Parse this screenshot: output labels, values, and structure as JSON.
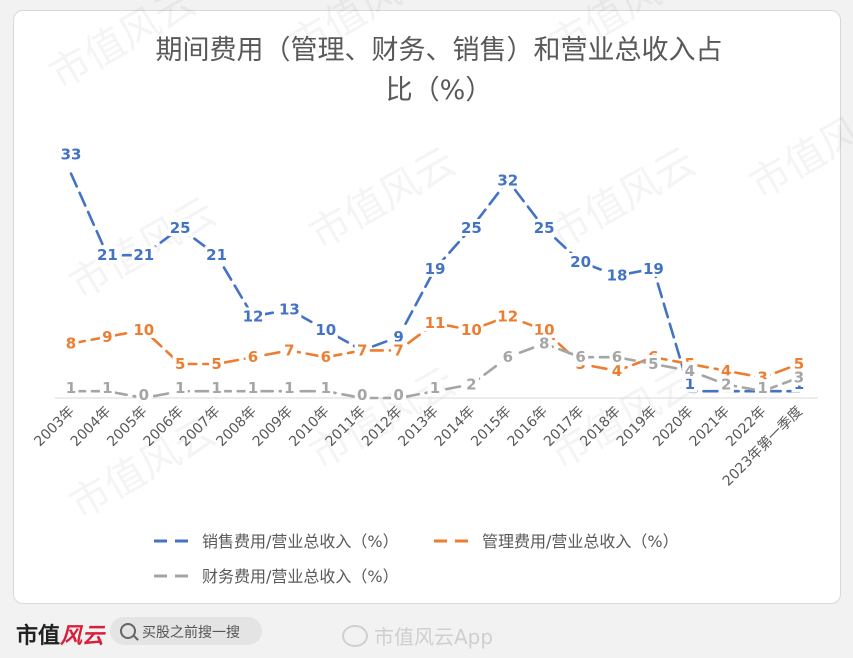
{
  "chart_data": {
    "type": "line",
    "title_line1": "期间费用（管理、财务、销售）和营业总收入占",
    "title_line2": "比（%）",
    "categories": [
      "2003年",
      "2004年",
      "2005年",
      "2006年",
      "2007年",
      "2008年",
      "2009年",
      "2010年",
      "2011年",
      "2012年",
      "2013年",
      "2014年",
      "2015年",
      "2016年",
      "2017年",
      "2018年",
      "2019年",
      "2020年",
      "2021年",
      "2022年",
      "2023年第一季度"
    ],
    "series": [
      {
        "name": "销售费用/营业总收入（%）",
        "color": "#4472c4",
        "values": [
          33,
          21,
          21,
          25,
          21,
          12,
          13,
          10,
          7,
          9,
          19,
          25,
          32,
          25,
          20,
          18,
          19,
          1,
          1,
          1,
          1
        ]
      },
      {
        "name": "管理费用/营业总收入（%）",
        "color": "#ed7d31",
        "values": [
          8,
          9,
          10,
          5,
          5,
          6,
          7,
          6,
          7,
          7,
          11,
          10,
          12,
          10,
          5,
          4,
          6,
          5,
          4,
          3,
          5
        ]
      },
      {
        "name": "财务费用/营业总收入（%）",
        "color": "#a5a5a5",
        "values": [
          1,
          1,
          0,
          1,
          1,
          1,
          1,
          1,
          0,
          0,
          1,
          2,
          6,
          8,
          6,
          6,
          5,
          4,
          2,
          1,
          3
        ]
      }
    ],
    "ylim": [
      0,
      35
    ],
    "grid": false,
    "legend_position": "bottom"
  },
  "footer": {
    "brand_text": "市值",
    "brand_logo": "风云",
    "search_placeholder": "买股之前搜一搜",
    "weibo_handle": "市值风云App"
  },
  "watermark": "市值风云"
}
